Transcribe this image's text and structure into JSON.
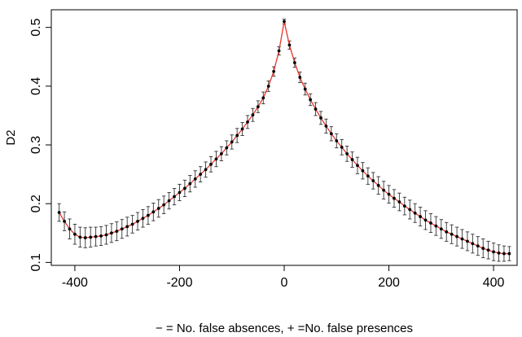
{
  "chart_data": {
    "type": "line",
    "title": "",
    "xlabel": "− = No. false absences, + =No. false presences",
    "ylabel": "D2",
    "xlim": [
      -445,
      445
    ],
    "ylim": [
      0.095,
      0.53
    ],
    "x_ticks": [
      {
        "value": -400,
        "label": "-400"
      },
      {
        "value": -200,
        "label": "-200"
      },
      {
        "value": 0,
        "label": "0"
      },
      {
        "value": 200,
        "label": "200"
      },
      {
        "value": 400,
        "label": "400"
      }
    ],
    "y_ticks": [
      {
        "value": 0.1,
        "label": "0.1"
      },
      {
        "value": 0.2,
        "label": "0.2"
      },
      {
        "value": 0.3,
        "label": "0.3"
      },
      {
        "value": 0.4,
        "label": "0.4"
      },
      {
        "value": 0.5,
        "label": "0.5"
      }
    ],
    "line_color": "#e8352c",
    "point_color": "#000000",
    "errorbar_color": "#333333",
    "grid": false,
    "series": [
      {
        "x": [
          -430,
          -420,
          -410,
          -400,
          -390,
          -380,
          -370,
          -360,
          -350,
          -340,
          -330,
          -320,
          -310,
          -300,
          -290,
          -280,
          -270,
          -260,
          -250,
          -240,
          -230,
          -220,
          -210,
          -200,
          -190,
          -180,
          -170,
          -160,
          -150,
          -140,
          -130,
          -120,
          -110,
          -100,
          -90,
          -80,
          -70,
          -60,
          -50,
          -40,
          -30,
          -20,
          -10,
          0,
          10,
          20,
          30,
          40,
          50,
          60,
          70,
          80,
          90,
          100,
          110,
          120,
          130,
          140,
          150,
          160,
          170,
          180,
          190,
          200,
          210,
          220,
          230,
          240,
          250,
          260,
          270,
          280,
          290,
          300,
          310,
          320,
          330,
          340,
          350,
          360,
          370,
          380,
          390,
          400,
          410,
          420,
          430
        ],
        "y": [
          0.185,
          0.17,
          0.157,
          0.148,
          0.143,
          0.142,
          0.143,
          0.144,
          0.145,
          0.147,
          0.15,
          0.153,
          0.157,
          0.161,
          0.165,
          0.17,
          0.175,
          0.18,
          0.186,
          0.192,
          0.198,
          0.205,
          0.212,
          0.219,
          0.226,
          0.234,
          0.242,
          0.25,
          0.258,
          0.267,
          0.276,
          0.285,
          0.295,
          0.305,
          0.316,
          0.327,
          0.339,
          0.351,
          0.365,
          0.38,
          0.4,
          0.425,
          0.46,
          0.51,
          0.47,
          0.44,
          0.415,
          0.395,
          0.377,
          0.361,
          0.346,
          0.332,
          0.319,
          0.307,
          0.296,
          0.285,
          0.275,
          0.265,
          0.256,
          0.247,
          0.239,
          0.231,
          0.223,
          0.216,
          0.209,
          0.203,
          0.196,
          0.19,
          0.184,
          0.178,
          0.172,
          0.167,
          0.162,
          0.157,
          0.152,
          0.148,
          0.144,
          0.14,
          0.136,
          0.132,
          0.128,
          0.124,
          0.121,
          0.118,
          0.116,
          0.115,
          0.115
        ],
        "err": [
          0.015,
          0.016,
          0.017,
          0.017,
          0.017,
          0.017,
          0.017,
          0.016,
          0.016,
          0.016,
          0.016,
          0.016,
          0.016,
          0.016,
          0.015,
          0.015,
          0.015,
          0.015,
          0.015,
          0.015,
          0.015,
          0.014,
          0.014,
          0.014,
          0.014,
          0.014,
          0.014,
          0.013,
          0.013,
          0.013,
          0.013,
          0.012,
          0.012,
          0.012,
          0.012,
          0.011,
          0.011,
          0.011,
          0.01,
          0.01,
          0.009,
          0.008,
          0.007,
          0.004,
          0.007,
          0.008,
          0.009,
          0.01,
          0.01,
          0.011,
          0.011,
          0.012,
          0.012,
          0.012,
          0.013,
          0.013,
          0.013,
          0.014,
          0.014,
          0.014,
          0.014,
          0.015,
          0.015,
          0.015,
          0.015,
          0.015,
          0.015,
          0.016,
          0.016,
          0.016,
          0.016,
          0.016,
          0.016,
          0.016,
          0.016,
          0.016,
          0.016,
          0.016,
          0.016,
          0.016,
          0.016,
          0.016,
          0.015,
          0.015,
          0.014,
          0.013,
          0.012
        ]
      }
    ]
  }
}
